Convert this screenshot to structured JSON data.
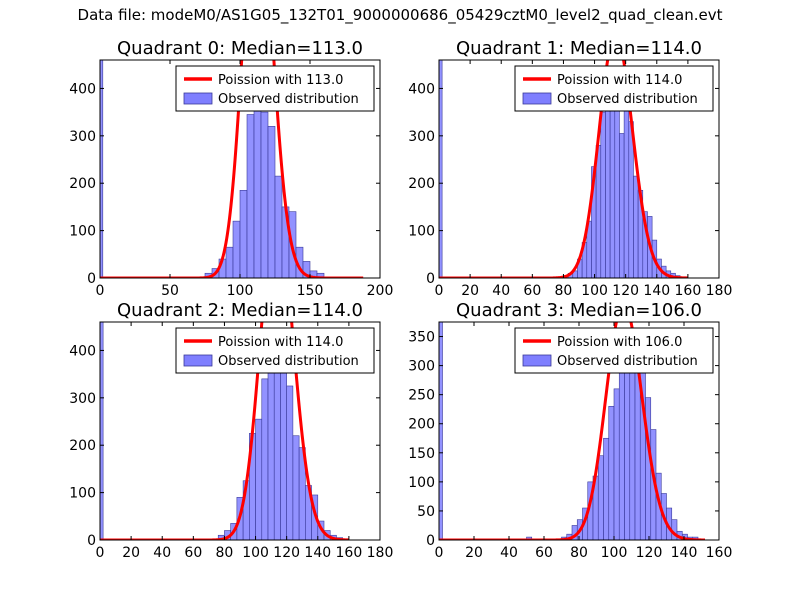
{
  "suptitle": "Data file: modeM0/AS1G05_132T01_9000000686_05429cztM0_level2_quad_clean.evt",
  "colors": {
    "bar": "#7f7fff",
    "bar_edge": "#3a3a9a",
    "line": "#ff0000",
    "axes": "#000000"
  },
  "chart_data": [
    {
      "type": "bar",
      "title": "Quadrant 0: Median=113.0",
      "xlim": [
        0,
        200
      ],
      "ylim": [
        0,
        460
      ],
      "xticks": [
        0,
        50,
        100,
        150,
        200
      ],
      "yticks": [
        0,
        100,
        200,
        300,
        400
      ],
      "bins": [
        [
          0,
          2,
          460
        ],
        [
          75,
          80,
          10
        ],
        [
          80,
          85,
          20
        ],
        [
          85,
          90,
          40
        ],
        [
          90,
          95,
          65
        ],
        [
          95,
          100,
          120
        ],
        [
          100,
          105,
          185
        ],
        [
          105,
          110,
          345
        ],
        [
          110,
          115,
          365
        ],
        [
          115,
          120,
          350
        ],
        [
          120,
          125,
          320
        ],
        [
          125,
          130,
          215
        ],
        [
          130,
          135,
          150
        ],
        [
          135,
          140,
          140
        ],
        [
          140,
          145,
          65
        ],
        [
          145,
          150,
          35
        ],
        [
          150,
          155,
          15
        ],
        [
          155,
          160,
          10
        ]
      ],
      "poisson_lambda": 113.0,
      "poisson_n": 4400,
      "poisson_bin": 5,
      "poisson_xrange": [
        0,
        188
      ],
      "legend": [
        "Poission with 113.0",
        "Observed distribution"
      ]
    },
    {
      "type": "bar",
      "title": "Quadrant 1: Median=114.0",
      "xlim": [
        0,
        180
      ],
      "ylim": [
        0,
        460
      ],
      "xticks": [
        0,
        20,
        40,
        60,
        80,
        100,
        120,
        140,
        160,
        180
      ],
      "yticks": [
        0,
        100,
        200,
        300,
        400
      ],
      "bins": [
        [
          0,
          2,
          460
        ],
        [
          80,
          83,
          5
        ],
        [
          83,
          86,
          10
        ],
        [
          86,
          89,
          15
        ],
        [
          89,
          92,
          40
        ],
        [
          92,
          95,
          75
        ],
        [
          95,
          98,
          120
        ],
        [
          98,
          101,
          235
        ],
        [
          101,
          104,
          280
        ],
        [
          104,
          107,
          350
        ],
        [
          107,
          110,
          430
        ],
        [
          110,
          113,
          400
        ],
        [
          113,
          116,
          375
        ],
        [
          116,
          119,
          305
        ],
        [
          119,
          122,
          360
        ],
        [
          122,
          125,
          330
        ],
        [
          125,
          128,
          215
        ],
        [
          128,
          131,
          185
        ],
        [
          131,
          134,
          140
        ],
        [
          134,
          137,
          130
        ],
        [
          137,
          140,
          80
        ],
        [
          140,
          143,
          40
        ],
        [
          143,
          146,
          25
        ],
        [
          146,
          149,
          15
        ],
        [
          149,
          152,
          10
        ],
        [
          152,
          155,
          5
        ]
      ],
      "poisson_lambda": 114.0,
      "poisson_n": 4600,
      "poisson_bin": 3,
      "poisson_xrange": [
        0,
        160
      ],
      "legend": [
        "Poission with 114.0",
        "Observed distribution"
      ]
    },
    {
      "type": "bar",
      "title": "Quadrant 2: Median=114.0",
      "xlim": [
        0,
        180
      ],
      "ylim": [
        0,
        460
      ],
      "xticks": [
        0,
        20,
        40,
        60,
        80,
        100,
        120,
        140,
        160,
        180
      ],
      "yticks": [
        0,
        100,
        200,
        300,
        400
      ],
      "bins": [
        [
          0,
          2,
          460
        ],
        [
          76,
          80,
          10
        ],
        [
          80,
          84,
          20
        ],
        [
          84,
          88,
          35
        ],
        [
          88,
          92,
          90
        ],
        [
          92,
          96,
          125
        ],
        [
          96,
          100,
          225
        ],
        [
          100,
          104,
          255
        ],
        [
          104,
          108,
          340
        ],
        [
          108,
          112,
          405
        ],
        [
          112,
          116,
          425
        ],
        [
          116,
          120,
          355
        ],
        [
          120,
          124,
          325
        ],
        [
          124,
          128,
          220
        ],
        [
          128,
          132,
          195
        ],
        [
          132,
          136,
          115
        ],
        [
          136,
          140,
          95
        ],
        [
          140,
          144,
          40
        ],
        [
          144,
          148,
          20
        ],
        [
          148,
          152,
          10
        ],
        [
          152,
          156,
          5
        ]
      ],
      "poisson_lambda": 114.0,
      "poisson_n": 4600,
      "poisson_bin": 4,
      "poisson_xrange": [
        0,
        160
      ],
      "legend": [
        "Poission with 114.0",
        "Observed distribution"
      ]
    },
    {
      "type": "bar",
      "title": "Quadrant 3: Median=106.0",
      "xlim": [
        0,
        160
      ],
      "ylim": [
        0,
        375
      ],
      "xticks": [
        0,
        20,
        40,
        60,
        80,
        100,
        120,
        140,
        160
      ],
      "yticks": [
        0,
        50,
        100,
        150,
        200,
        250,
        300,
        350
      ],
      "bins": [
        [
          0,
          2,
          375
        ],
        [
          50,
          53,
          5
        ],
        [
          70,
          73,
          5
        ],
        [
          73,
          76,
          10
        ],
        [
          76,
          79,
          25
        ],
        [
          79,
          82,
          35
        ],
        [
          82,
          85,
          55
        ],
        [
          85,
          88,
          100
        ],
        [
          88,
          91,
          110
        ],
        [
          91,
          94,
          145
        ],
        [
          94,
          97,
          175
        ],
        [
          97,
          100,
          230
        ],
        [
          100,
          103,
          260
        ],
        [
          103,
          106,
          330
        ],
        [
          106,
          109,
          355
        ],
        [
          109,
          112,
          340
        ],
        [
          112,
          115,
          330
        ],
        [
          115,
          118,
          300
        ],
        [
          118,
          121,
          245
        ],
        [
          121,
          124,
          190
        ],
        [
          124,
          127,
          115
        ],
        [
          127,
          130,
          80
        ],
        [
          130,
          133,
          55
        ],
        [
          133,
          136,
          35
        ],
        [
          136,
          139,
          15
        ],
        [
          139,
          142,
          10
        ],
        [
          142,
          145,
          5
        ],
        [
          145,
          148,
          5
        ]
      ],
      "poisson_lambda": 106.0,
      "poisson_n": 3500,
      "poisson_bin": 3,
      "poisson_xrange": [
        0,
        152
      ],
      "legend": [
        "Poission with 106.0",
        "Observed distribution"
      ]
    }
  ]
}
